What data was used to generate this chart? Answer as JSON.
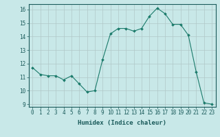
{
  "x": [
    0,
    1,
    2,
    3,
    4,
    5,
    6,
    7,
    8,
    9,
    10,
    11,
    12,
    13,
    14,
    15,
    16,
    17,
    18,
    19,
    20,
    21,
    22,
    23
  ],
  "y": [
    11.7,
    11.2,
    11.1,
    11.1,
    10.8,
    11.1,
    10.5,
    9.9,
    10.0,
    12.3,
    14.2,
    14.6,
    14.6,
    14.4,
    14.6,
    15.5,
    16.1,
    15.7,
    14.9,
    14.9,
    14.1,
    11.4,
    9.1,
    9.0
  ],
  "line_color": "#1a7a6a",
  "marker": "D",
  "marker_size": 2.0,
  "bg_color": "#c8e8e8",
  "grid_color": "#b0c8c8",
  "xlabel": "Humidex (Indice chaleur)",
  "ylim": [
    8.8,
    16.4
  ],
  "xlim": [
    -0.5,
    23.5
  ],
  "yticks": [
    9,
    10,
    11,
    12,
    13,
    14,
    15,
    16
  ],
  "xticks": [
    0,
    1,
    2,
    3,
    4,
    5,
    6,
    7,
    8,
    9,
    10,
    11,
    12,
    13,
    14,
    15,
    16,
    17,
    18,
    19,
    20,
    21,
    22,
    23
  ],
  "axis_color": "#1a5a5a",
  "label_fontsize": 6.5,
  "tick_fontsize": 5.5
}
